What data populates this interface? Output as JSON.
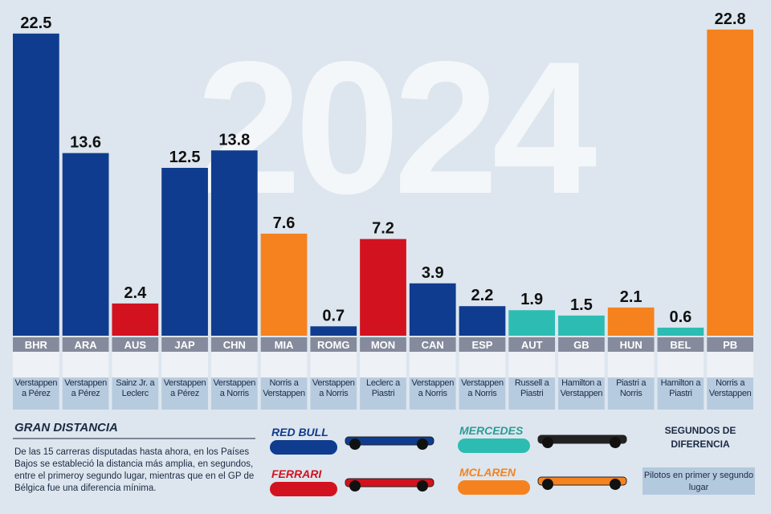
{
  "chart_data": {
    "type": "bar",
    "background_text": "2024",
    "categories": [
      "BHR",
      "ARA",
      "AUS",
      "JAP",
      "CHN",
      "MIA",
      "ROMG",
      "MON",
      "CAN",
      "ESP",
      "AUT",
      "GB",
      "HUN",
      "BEL",
      "PB"
    ],
    "series": [
      {
        "name": "RED BULL",
        "color": "#0f3c8e",
        "values": [
          22.5,
          13.6,
          null,
          12.5,
          13.8,
          null,
          0.7,
          null,
          3.9,
          2.2,
          null,
          null,
          null,
          null,
          null
        ]
      },
      {
        "name": "FERRARI",
        "color": "#d3121f",
        "values": [
          null,
          null,
          2.4,
          null,
          null,
          null,
          null,
          7.2,
          null,
          null,
          null,
          null,
          null,
          null,
          null
        ]
      },
      {
        "name": "MERCEDES",
        "color": "#2cbcb2",
        "values": [
          null,
          null,
          null,
          null,
          null,
          null,
          null,
          null,
          null,
          null,
          1.9,
          1.5,
          null,
          0.6,
          null
        ]
      },
      {
        "name": "MCLAREN",
        "color": "#f5821f",
        "values": [
          null,
          null,
          null,
          null,
          null,
          7.6,
          null,
          null,
          null,
          null,
          null,
          null,
          2.1,
          null,
          22.8
        ]
      }
    ],
    "drivers": [
      "Verstappen a Pérez",
      "Verstappen a Pérez",
      "Sainz Jr. a Leclerc",
      "Verstappen a Pérez",
      "Verstappen a Norris",
      "Norris a Verstappen",
      "Verstappen a Norris",
      "Leclerc a Piastri",
      "Verstappen a Norris",
      "Verstappen a Norris",
      "Russell a Piastri",
      "Hamilton a Verstappen",
      "Piastri a Norris",
      "Hamilton a Piastri",
      "Norris a Verstappen"
    ],
    "ylim": [
      0,
      25
    ],
    "legend_title": "SEGUNDOS DE DIFERENCIA",
    "legend_note": "Pilotos en primer y segundo lugar"
  },
  "note": {
    "title": "GRAN DISTANCIA",
    "text": "De las 15 carreras disputadas hasta ahora, en los Países Bajos se estableció la distancia más amplia, en segundos, entre el primeroy segundo lugar, mientras que en el GP de Bélgica fue una diferencia mínima."
  }
}
